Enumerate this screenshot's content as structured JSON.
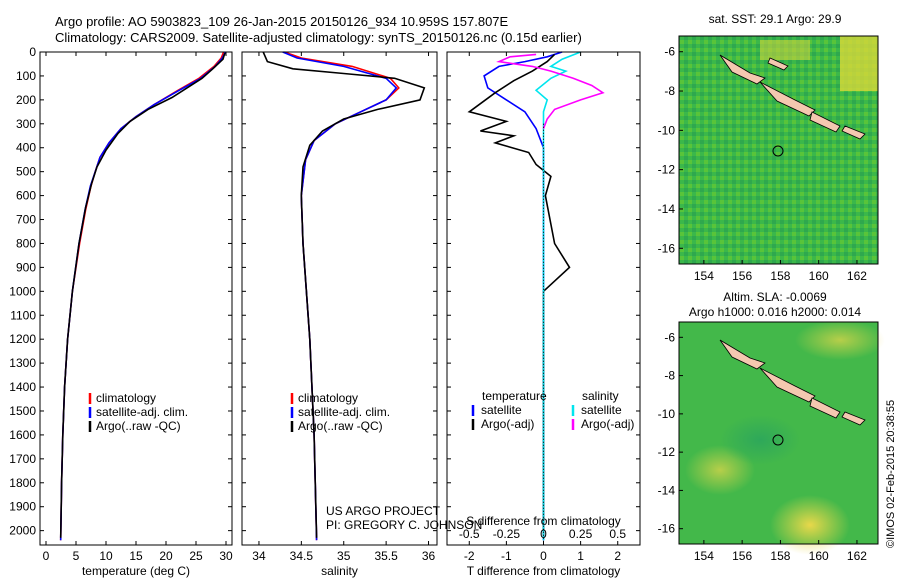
{
  "header": {
    "line1": "Argo profile: AO 5903823_109 26-Jan-2015 20150126_934 10.959S 157.807E",
    "line2": "Climatology: CARS2009. Satellite-adjusted climatology: synTS_20150126.nc (0.15d earlier)"
  },
  "colors": {
    "climatology": "#ff0000",
    "satellite": "#0000ff",
    "argo": "#000000",
    "argo_salinity": "#ff00ff",
    "satellite_salinity": "#00e5ee"
  },
  "chart_data": [
    {
      "type": "line",
      "id": "temperature",
      "xlabel": "temperature (deg C)",
      "xlim": [
        -1,
        31
      ],
      "ylim": [
        0,
        2060
      ],
      "xticks": [
        0,
        5,
        10,
        15,
        20,
        25,
        30
      ],
      "yticks": [
        0,
        100,
        200,
        300,
        400,
        500,
        600,
        700,
        800,
        900,
        1000,
        1100,
        1200,
        1300,
        1400,
        1500,
        1600,
        1700,
        1800,
        1900,
        2000
      ],
      "legend": [
        "climatology",
        "satellite-adj. clim.",
        "Argo(..raw -QC)"
      ],
      "series": [
        {
          "name": "climatology",
          "color": "#ff0000",
          "x": [
            29.6,
            29.2,
            28,
            25.5,
            22,
            18,
            15,
            12.5,
            10.5,
            9,
            8.2,
            7.5,
            6.6,
            5.6,
            4.4,
            3.6,
            3.1,
            2.8,
            2.6,
            2.45
          ],
          "y": [
            0,
            25,
            60,
            110,
            160,
            220,
            270,
            320,
            380,
            440,
            500,
            560,
            660,
            800,
            1000,
            1200,
            1400,
            1600,
            1800,
            2040
          ]
        },
        {
          "name": "satellite-adj. clim.",
          "color": "#0000ff",
          "x": [
            29.9,
            29.4,
            28.2,
            25.8,
            22.2,
            18,
            15,
            12.5,
            10.5,
            9,
            8.2,
            7.4,
            6.5,
            5.5,
            4.4,
            3.6,
            3.1,
            2.8,
            2.6,
            2.45
          ],
          "y": [
            0,
            25,
            60,
            110,
            160,
            220,
            270,
            320,
            380,
            440,
            500,
            560,
            660,
            800,
            1000,
            1200,
            1400,
            1600,
            1800,
            2040
          ]
        },
        {
          "name": "Argo(..raw -QC)",
          "color": "#000000",
          "x": [
            29.8,
            29.5,
            27.8,
            26,
            23.5,
            21,
            17,
            14,
            12,
            10,
            8.5,
            7.6,
            6.6,
            5.5,
            4.4,
            3.6,
            3.1,
            2.8,
            2.6,
            2.45
          ],
          "y": [
            5,
            30,
            70,
            110,
            150,
            190,
            240,
            290,
            340,
            410,
            480,
            550,
            650,
            800,
            1000,
            1200,
            1400,
            1600,
            1800,
            2030
          ]
        }
      ]
    },
    {
      "type": "line",
      "id": "salinity",
      "xlabel": "salinity",
      "xlim": [
        33.8,
        36.1
      ],
      "ylim": [
        0,
        2060
      ],
      "xticks": [
        34,
        34.5,
        35,
        35.5,
        36
      ],
      "xtick_labels": [
        "34",
        "34.5",
        "35",
        "35.5",
        "36"
      ],
      "legend": [
        "climatology",
        "satellite-adj. clim.",
        "Argo(..raw -QC)"
      ],
      "annotation": [
        "US ARGO PROJECT",
        "PI: GREGORY C. JOHNSON"
      ],
      "series": [
        {
          "name": "climatology",
          "color": "#ff0000",
          "x": [
            34.3,
            34.5,
            35.1,
            35.55,
            35.65,
            35.5,
            35.2,
            34.9,
            34.65,
            34.55,
            34.5,
            34.52,
            34.6,
            34.65,
            34.68
          ],
          "y": [
            0,
            25,
            60,
            110,
            150,
            200,
            250,
            300,
            370,
            450,
            600,
            800,
            1200,
            1600,
            2040
          ]
        },
        {
          "name": "satellite-adj. clim.",
          "color": "#0000ff",
          "x": [
            34.28,
            34.45,
            35,
            35.5,
            35.62,
            35.5,
            35.2,
            34.9,
            34.65,
            34.55,
            34.5,
            34.52,
            34.6,
            34.65,
            34.68
          ],
          "y": [
            0,
            25,
            60,
            110,
            150,
            200,
            250,
            300,
            370,
            450,
            600,
            800,
            1200,
            1600,
            2040
          ]
        },
        {
          "name": "Argo(..raw -QC)",
          "color": "#000000",
          "x": [
            34.05,
            34.1,
            34.4,
            35.0,
            35.6,
            35.95,
            35.9,
            35.4,
            35.0,
            34.75,
            34.6,
            34.52,
            34.5,
            34.52,
            34.6,
            34.65,
            34.68
          ],
          "y": [
            0,
            40,
            70,
            90,
            110,
            150,
            200,
            240,
            280,
            330,
            390,
            480,
            600,
            800,
            1200,
            1600,
            2030
          ]
        }
      ]
    },
    {
      "type": "line",
      "id": "difference",
      "xlabel": "T difference from climatology",
      "xlabel2": "S difference from climatology",
      "xlim": [
        -2.6,
        2.6
      ],
      "ylim": [
        0,
        2060
      ],
      "xticks": [
        -2,
        -1,
        0,
        1,
        2
      ],
      "xticks2": [
        -0.5,
        -0.25,
        0,
        0.25,
        0.5
      ],
      "xticks2_labels": [
        "-0.5",
        "-0.25",
        "0",
        "0.25",
        "0.5"
      ],
      "legend_titles": [
        "temperature",
        "salinity"
      ],
      "legend": [
        "satellite",
        "Argo(-adj)",
        "satellite",
        "Argo(-adj)"
      ],
      "series": [
        {
          "name": "temperature satellite",
          "color": "#0000ff",
          "x": [
            0.5,
            0.1,
            -0.5,
            -1.2,
            -1.6,
            -1.5,
            -1.0,
            -0.5,
            -0.2,
            0,
            0,
            0,
            0
          ],
          "y": [
            0,
            20,
            40,
            60,
            100,
            150,
            200,
            250,
            320,
            400,
            600,
            1000,
            2040
          ]
        },
        {
          "name": "temperature Argo(-adj)",
          "color": "#000000",
          "x": [
            0.3,
            0.1,
            -0.3,
            -0.8,
            -1.3,
            -2.0,
            -1.0,
            -1.7,
            -0.8,
            -1.3,
            -0.4,
            -0.2,
            0.2,
            0.05,
            0.3,
            0.7,
            0,
            0
          ],
          "y": [
            10,
            40,
            80,
            120,
            170,
            250,
            290,
            330,
            350,
            380,
            420,
            470,
            520,
            600,
            800,
            900,
            1000,
            2030
          ]
        },
        {
          "name": "salinity satellite",
          "color": "#00e5ee",
          "x": [
            1.0,
            0.5,
            0.2,
            0.6,
            0.2,
            -0.2,
            0.1,
            0,
            0,
            0,
            0,
            0
          ],
          "y": [
            0,
            30,
            60,
            80,
            110,
            160,
            200,
            250,
            300,
            500,
            1000,
            2040
          ]
        },
        {
          "name": "salinity Argo(-adj)",
          "color": "#ff00ff",
          "x": [
            -0.2,
            -0.9,
            -1.2,
            -0.3,
            0.2,
            0.8,
            1.3,
            1.6,
            1.0,
            0.3,
            0.1,
            0
          ],
          "y": [
            10,
            20,
            40,
            60,
            80,
            110,
            140,
            170,
            200,
            240,
            280,
            320
          ]
        }
      ]
    },
    {
      "type": "heatmap",
      "id": "sst_map",
      "title": "sat. SST: 29.1  Argo: 29.9",
      "xticks": [
        154,
        156,
        158,
        160,
        162
      ],
      "yticks": [
        -6,
        -8,
        -10,
        -12,
        -14,
        -16
      ],
      "marker": {
        "lon": 157.807,
        "lat": -10.959
      }
    },
    {
      "type": "heatmap",
      "id": "sla_map",
      "title": "Altim. SLA: -0.0069",
      "subtitle": "Argo h1000: 0.016 h2000: 0.014",
      "xticks": [
        154,
        156,
        158,
        160,
        162
      ],
      "yticks": [
        -6,
        -8,
        -10,
        -12,
        -14,
        -16
      ],
      "marker": {
        "lon": 157.807,
        "lat": -10.959
      }
    }
  ],
  "footer": {
    "credit": "©IMOS 02-Feb-2015 20:38:55"
  }
}
